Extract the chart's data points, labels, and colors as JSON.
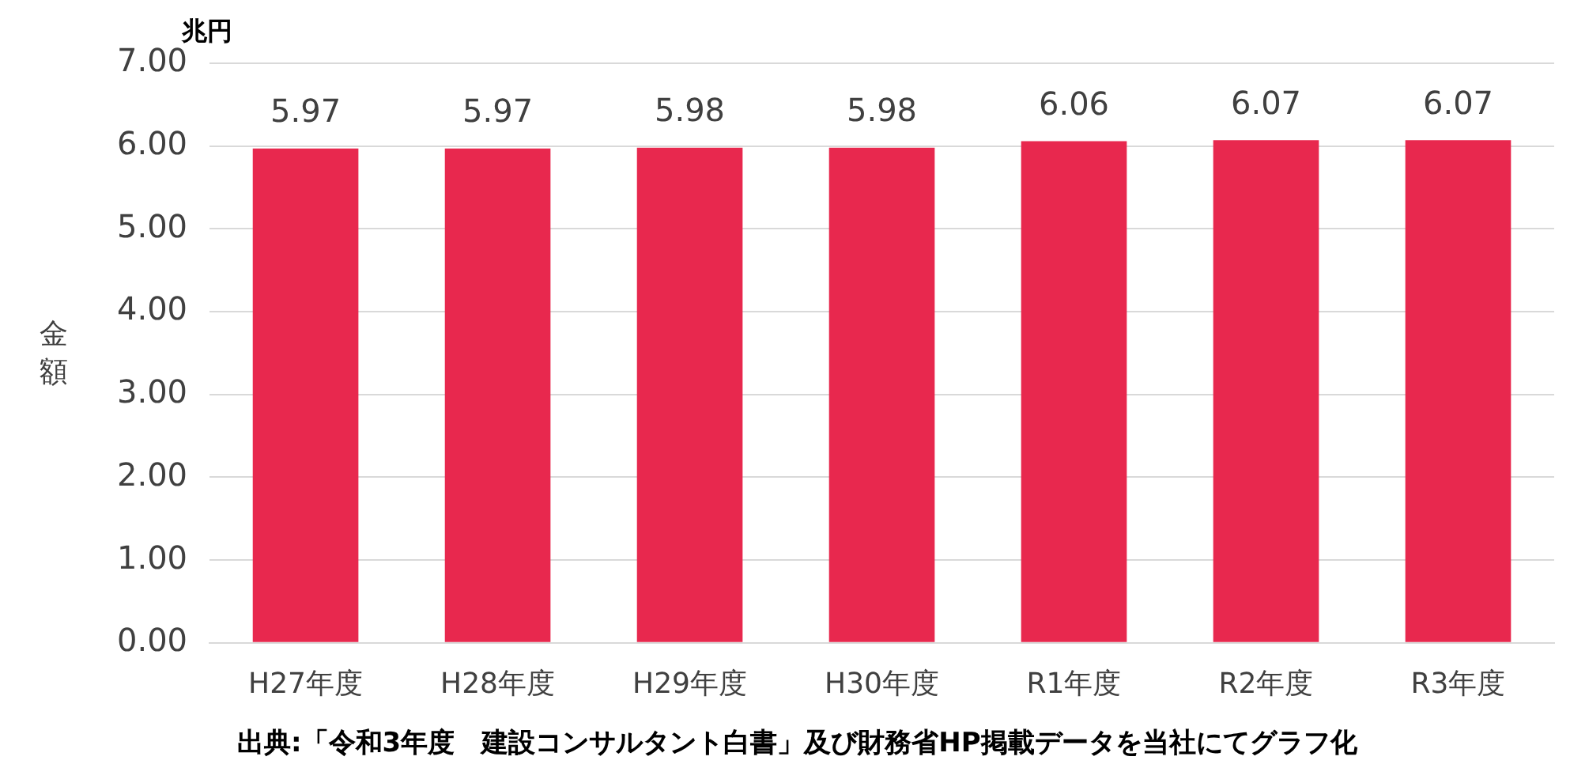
{
  "chart_data": {
    "type": "bar",
    "ylabel": "金額",
    "annotations": [
      "兆円",
      "出典:「令和3年度　建設コンサルタント白書」及び財務省HP掲載データを当社にてグラフ化"
    ],
    "categories": [
      "H27年度",
      "H28年度",
      "H29年度",
      "H30年度",
      "R1年度",
      "R2年度",
      "R3年度"
    ],
    "values": [
      5.97,
      5.97,
      5.98,
      5.98,
      6.06,
      6.07,
      6.07
    ],
    "value_labels": [
      "5.97",
      "5.97",
      "5.98",
      "5.98",
      "6.06",
      "6.07",
      "6.07"
    ],
    "color": "#e8284e",
    "ylim": [
      0,
      7
    ],
    "yticks": [
      {
        "value": 0,
        "label": "0.00"
      },
      {
        "value": 1,
        "label": "1.00"
      },
      {
        "value": 2,
        "label": "2.00"
      },
      {
        "value": 3,
        "label": "3.00"
      },
      {
        "value": 4,
        "label": "4.00"
      },
      {
        "value": 5,
        "label": "5.00"
      },
      {
        "value": 6,
        "label": "6.00"
      },
      {
        "value": 7,
        "label": "7.00"
      }
    ],
    "grid": "y"
  }
}
